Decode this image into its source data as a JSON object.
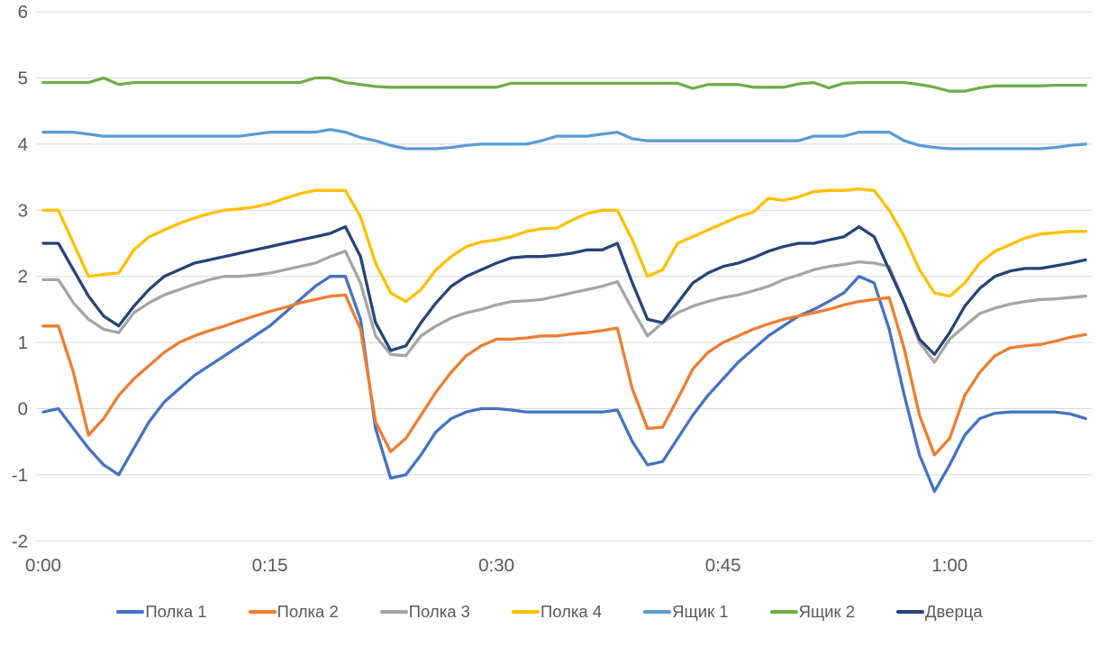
{
  "chart_data": {
    "type": "line",
    "title": "",
    "xlabel": "",
    "ylabel": "",
    "legend_position": "bottom",
    "grid": "horizontal-only",
    "background": "#ffffff",
    "gridline_color": "#d9d9d9",
    "axis_label_color": "#595959",
    "y_axis": {
      "min": -2,
      "max": 6,
      "step": 1,
      "tick_labels": [
        "-2",
        "-1",
        "0",
        "1",
        "2",
        "3",
        "4",
        "5",
        "6"
      ]
    },
    "x_axis": {
      "unit": "time h:mm",
      "sample_interval_minutes": 1,
      "start_minute": 0,
      "end_minute": 69,
      "ticks": [
        {
          "minute": 0,
          "label": "0:00"
        },
        {
          "minute": 15,
          "label": "0:15"
        },
        {
          "minute": 30,
          "label": "0:30"
        },
        {
          "minute": 45,
          "label": "0:45"
        },
        {
          "minute": 60,
          "label": "1:00"
        }
      ]
    },
    "series": [
      {
        "name": "Полка 1",
        "color": "#4472C4",
        "values": [
          -0.05,
          0,
          -0.3,
          -0.6,
          -0.85,
          -1,
          -0.6,
          -0.2,
          0.1,
          0.3,
          0.5,
          0.65,
          0.8,
          0.95,
          1.1,
          1.25,
          1.45,
          1.65,
          1.85,
          2,
          2,
          1.35,
          -0.3,
          -1.05,
          -1,
          -0.7,
          -0.35,
          -0.15,
          -0.05,
          0,
          0,
          -0.02,
          -0.05,
          -0.05,
          -0.05,
          -0.05,
          -0.05,
          -0.05,
          -0.02,
          -0.5,
          -0.85,
          -0.8,
          -0.45,
          -0.1,
          0.2,
          0.45,
          0.7,
          0.9,
          1.1,
          1.25,
          1.4,
          1.5,
          1.62,
          1.75,
          2,
          1.9,
          1.2,
          0.2,
          -0.7,
          -1.25,
          -0.85,
          -0.4,
          -0.15,
          -0.07,
          -0.05,
          -0.05,
          -0.05,
          -0.05,
          -0.08,
          -0.15
        ]
      },
      {
        "name": "Полка 2",
        "color": "#ED7D31",
        "values": [
          1.25,
          1.25,
          0.55,
          -0.4,
          -0.15,
          0.2,
          0.45,
          0.65,
          0.85,
          1,
          1.1,
          1.18,
          1.25,
          1.33,
          1.4,
          1.47,
          1.53,
          1.6,
          1.65,
          1.7,
          1.72,
          1.2,
          -0.2,
          -0.65,
          -0.45,
          -0.1,
          0.25,
          0.55,
          0.8,
          0.95,
          1.05,
          1.05,
          1.07,
          1.1,
          1.1,
          1.13,
          1.15,
          1.18,
          1.22,
          0.3,
          -0.3,
          -0.28,
          0.15,
          0.6,
          0.85,
          1,
          1.1,
          1.2,
          1.28,
          1.35,
          1.4,
          1.45,
          1.5,
          1.57,
          1.62,
          1.65,
          1.68,
          0.9,
          -0.1,
          -0.7,
          -0.45,
          0.2,
          0.55,
          0.8,
          0.92,
          0.95,
          0.97,
          1.02,
          1.08,
          1.12
        ]
      },
      {
        "name": "Полка 3",
        "color": "#A5A5A5",
        "values": [
          1.95,
          1.95,
          1.6,
          1.35,
          1.2,
          1.15,
          1.45,
          1.6,
          1.72,
          1.8,
          1.88,
          1.95,
          2,
          2,
          2.02,
          2.05,
          2.1,
          2.15,
          2.2,
          2.3,
          2.38,
          1.9,
          1.1,
          0.82,
          0.8,
          1.1,
          1.25,
          1.37,
          1.45,
          1.5,
          1.57,
          1.62,
          1.63,
          1.65,
          1.7,
          1.75,
          1.8,
          1.85,
          1.92,
          1.5,
          1.1,
          1.3,
          1.45,
          1.55,
          1.62,
          1.68,
          1.72,
          1.78,
          1.85,
          1.95,
          2.02,
          2.1,
          2.15,
          2.18,
          2.22,
          2.2,
          2.15,
          1.6,
          1,
          0.7,
          1.05,
          1.25,
          1.44,
          1.52,
          1.58,
          1.62,
          1.65,
          1.66,
          1.68,
          1.7
        ]
      },
      {
        "name": "Полка 4",
        "color": "#FFC000",
        "values": [
          3,
          3,
          2.5,
          2,
          2.03,
          2.05,
          2.4,
          2.6,
          2.7,
          2.8,
          2.88,
          2.95,
          3,
          3.02,
          3.05,
          3.1,
          3.18,
          3.25,
          3.3,
          3.3,
          3.3,
          2.9,
          2.2,
          1.75,
          1.62,
          1.8,
          2.1,
          2.3,
          2.45,
          2.52,
          2.55,
          2.6,
          2.68,
          2.72,
          2.73,
          2.85,
          2.95,
          3,
          3,
          2.55,
          2,
          2.1,
          2.5,
          2.6,
          2.7,
          2.8,
          2.9,
          2.97,
          3.18,
          3.15,
          3.2,
          3.28,
          3.3,
          3.3,
          3.32,
          3.3,
          3,
          2.6,
          2.1,
          1.75,
          1.7,
          1.9,
          2.2,
          2.38,
          2.48,
          2.58,
          2.64,
          2.66,
          2.68,
          2.68
        ]
      },
      {
        "name": "Ящик 1",
        "color": "#5B9BD5",
        "values": [
          4.18,
          4.18,
          4.18,
          4.15,
          4.12,
          4.12,
          4.12,
          4.12,
          4.12,
          4.12,
          4.12,
          4.12,
          4.12,
          4.12,
          4.15,
          4.18,
          4.18,
          4.18,
          4.18,
          4.22,
          4.18,
          4.1,
          4.05,
          3.98,
          3.93,
          3.93,
          3.93,
          3.95,
          3.98,
          4,
          4,
          4,
          4,
          4.05,
          4.12,
          4.12,
          4.12,
          4.15,
          4.18,
          4.08,
          4.05,
          4.05,
          4.05,
          4.05,
          4.05,
          4.05,
          4.05,
          4.05,
          4.05,
          4.05,
          4.05,
          4.12,
          4.12,
          4.12,
          4.18,
          4.18,
          4.18,
          4.05,
          3.98,
          3.95,
          3.93,
          3.93,
          3.93,
          3.93,
          3.93,
          3.93,
          3.93,
          3.95,
          3.98,
          4
        ]
      },
      {
        "name": "Ящик 2",
        "color": "#70AD47",
        "values": [
          4.93,
          4.93,
          4.93,
          4.93,
          5,
          4.9,
          4.93,
          4.93,
          4.93,
          4.93,
          4.93,
          4.93,
          4.93,
          4.93,
          4.93,
          4.93,
          4.93,
          4.93,
          5,
          5,
          4.93,
          4.9,
          4.87,
          4.86,
          4.86,
          4.86,
          4.86,
          4.86,
          4.86,
          4.86,
          4.86,
          4.92,
          4.92,
          4.92,
          4.92,
          4.92,
          4.92,
          4.92,
          4.92,
          4.92,
          4.92,
          4.92,
          4.92,
          4.84,
          4.9,
          4.9,
          4.9,
          4.86,
          4.86,
          4.86,
          4.91,
          4.93,
          4.85,
          4.92,
          4.93,
          4.93,
          4.93,
          4.93,
          4.9,
          4.86,
          4.8,
          4.8,
          4.85,
          4.88,
          4.88,
          4.88,
          4.88,
          4.89,
          4.89,
          4.89
        ]
      },
      {
        "name": "Дверца",
        "color": "#264478",
        "values": [
          2.5,
          2.5,
          2.1,
          1.7,
          1.4,
          1.25,
          1.55,
          1.8,
          2,
          2.1,
          2.2,
          2.25,
          2.3,
          2.35,
          2.4,
          2.45,
          2.5,
          2.55,
          2.6,
          2.65,
          2.75,
          2.3,
          1.3,
          0.88,
          0.95,
          1.3,
          1.6,
          1.85,
          2,
          2.1,
          2.2,
          2.28,
          2.3,
          2.3,
          2.32,
          2.35,
          2.4,
          2.4,
          2.5,
          1.9,
          1.35,
          1.3,
          1.6,
          1.9,
          2.05,
          2.15,
          2.2,
          2.28,
          2.38,
          2.45,
          2.5,
          2.5,
          2.55,
          2.6,
          2.75,
          2.6,
          2.1,
          1.6,
          1.05,
          0.82,
          1.15,
          1.55,
          1.82,
          2,
          2.08,
          2.12,
          2.12,
          2.16,
          2.2,
          2.25
        ]
      }
    ]
  }
}
